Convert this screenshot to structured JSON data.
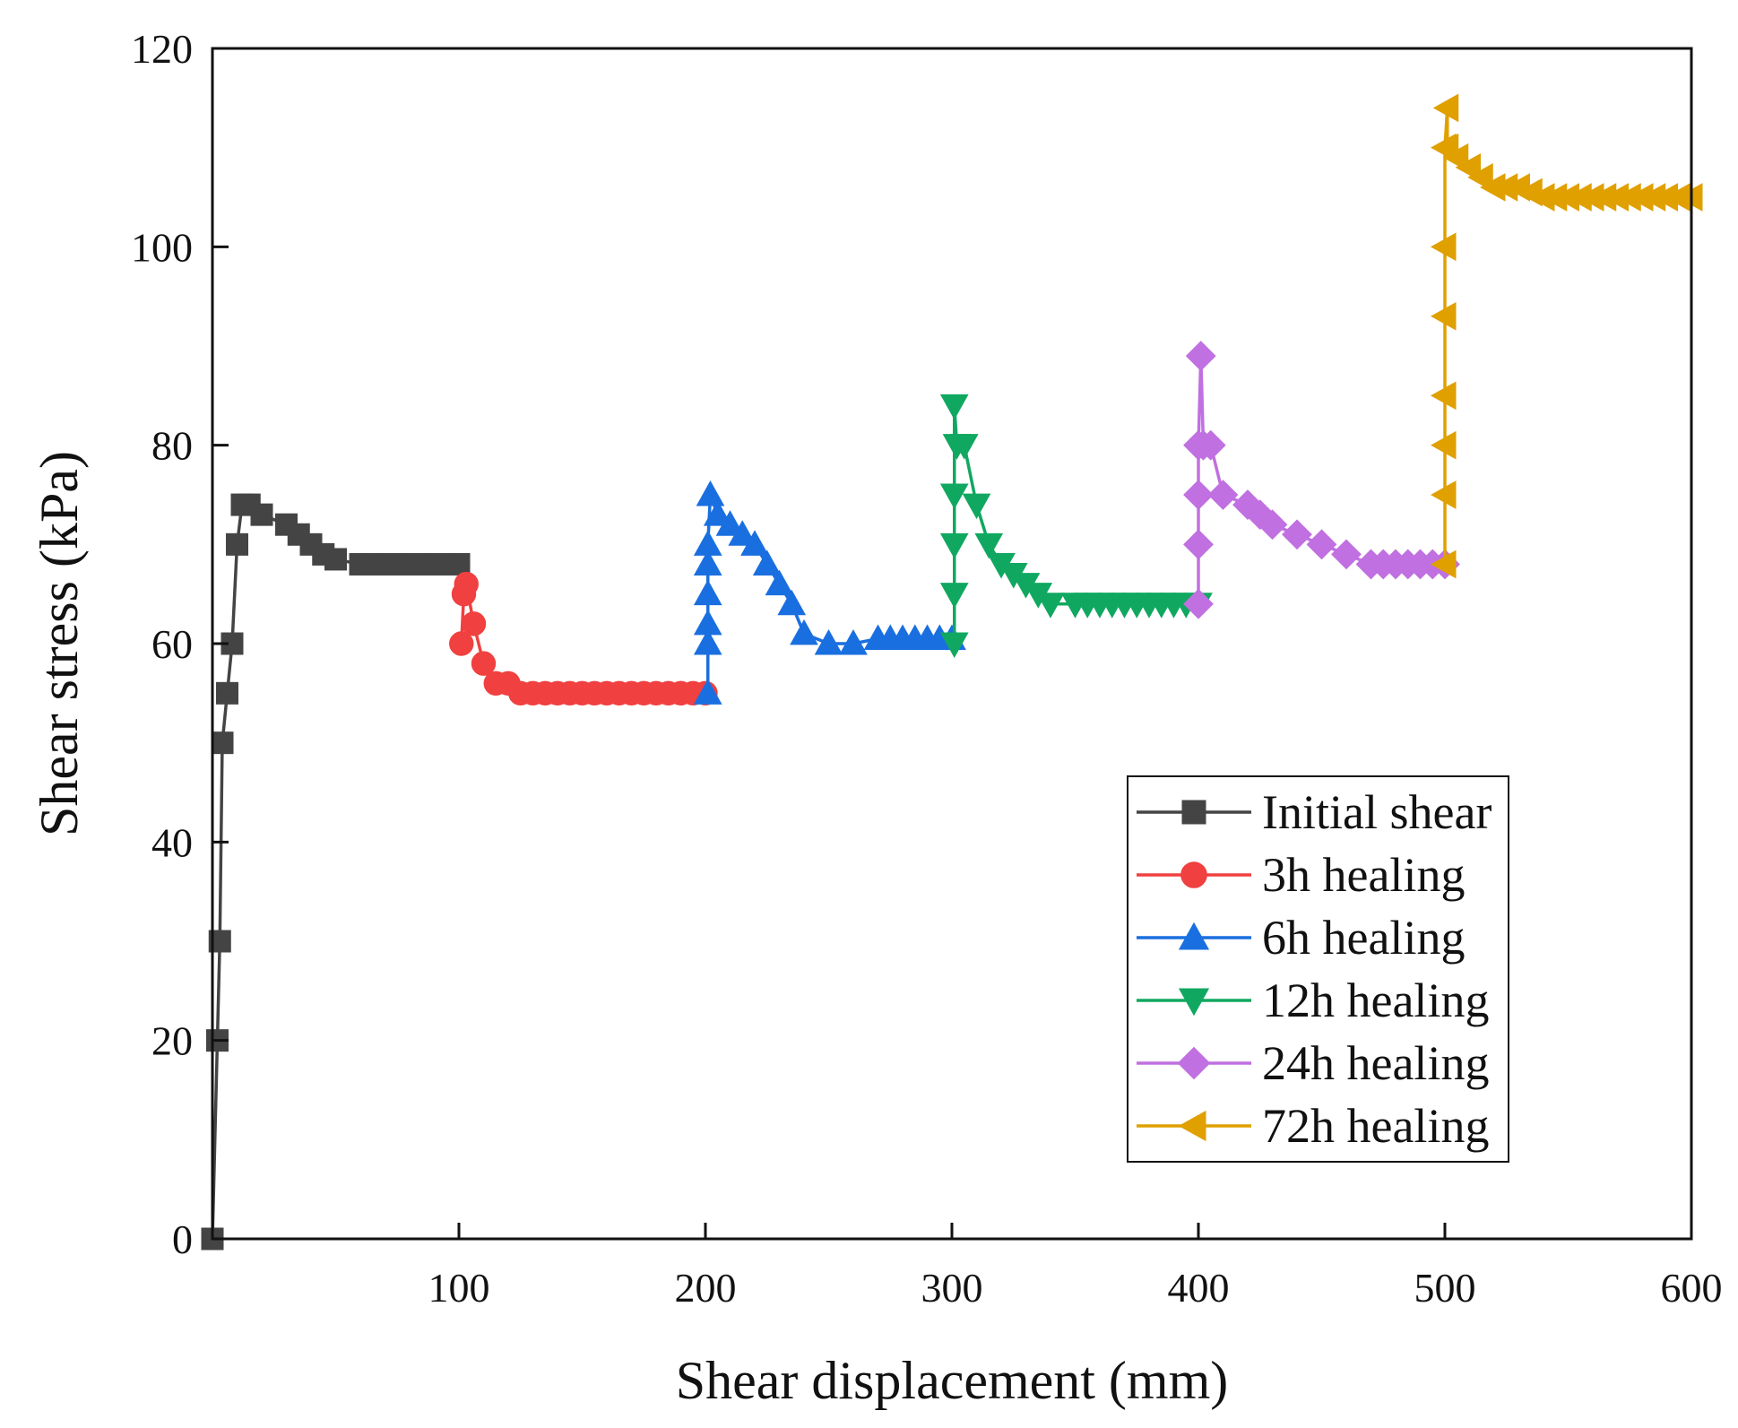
{
  "chart_data": {
    "type": "line",
    "title": "",
    "xlabel": "Shear displacement (mm)",
    "ylabel": "Shear stress (kPa)",
    "xlim": [
      0,
      600
    ],
    "ylim": [
      0,
      120
    ],
    "xticks": [
      100,
      200,
      300,
      400,
      500,
      600
    ],
    "xtick_labels": [
      "100",
      "200",
      "300",
      "400",
      "500",
      "600"
    ],
    "yticks": [
      0,
      20,
      40,
      60,
      80,
      100,
      120
    ],
    "ytick_labels": [
      "0",
      "20",
      "40",
      "60",
      "80",
      "100",
      "120"
    ],
    "grid": false,
    "legend_position": "bottom-right",
    "series": [
      {
        "name": "Initial shear",
        "color": "#444444",
        "marker": "square",
        "x": [
          0,
          2,
          3,
          4,
          6,
          8,
          10,
          12,
          15,
          20,
          30,
          35,
          40,
          45,
          50,
          60,
          65,
          70,
          75,
          80,
          85,
          90,
          95,
          100
        ],
        "y": [
          0,
          20,
          30,
          50,
          55,
          60,
          70,
          74,
          74,
          73,
          72,
          71,
          70,
          69,
          68.5,
          68,
          68,
          68,
          68,
          68,
          68,
          68,
          68,
          68
        ]
      },
      {
        "name": "3h healing",
        "color": "#f04040",
        "marker": "circle",
        "x": [
          101,
          102,
          103,
          106,
          110,
          115,
          120,
          125,
          130,
          135,
          140,
          145,
          150,
          155,
          160,
          165,
          170,
          175,
          180,
          185,
          190,
          195,
          200
        ],
        "y": [
          60,
          65,
          66,
          62,
          58,
          56,
          56,
          55,
          55,
          55,
          55,
          55,
          55,
          55,
          55,
          55,
          55,
          55,
          55,
          55,
          55,
          55,
          55
        ]
      },
      {
        "name": "6h healing",
        "color": "#1a6fe0",
        "marker": "triangle-up",
        "x": [
          201,
          201,
          201,
          201,
          201,
          201,
          202,
          205,
          210,
          215,
          220,
          225,
          230,
          235,
          240,
          250,
          260,
          270,
          275,
          280,
          285,
          290,
          295,
          300
        ],
        "y": [
          55,
          60,
          62,
          65,
          68,
          70,
          75,
          73,
          72,
          71,
          70,
          68,
          66,
          64,
          61,
          60,
          60,
          60.5,
          60.5,
          60.5,
          60.5,
          60.5,
          60.5,
          60.5
        ]
      },
      {
        "name": "12h healing",
        "color": "#10a860",
        "marker": "triangle-down",
        "x": [
          301,
          301,
          301,
          301,
          301,
          302,
          305,
          310,
          315,
          320,
          325,
          330,
          335,
          340,
          350,
          355,
          360,
          365,
          370,
          375,
          380,
          385,
          390,
          395,
          400
        ],
        "y": [
          60,
          65,
          70,
          75,
          84,
          80,
          80,
          74,
          70,
          68,
          67,
          66,
          65,
          64,
          64,
          64,
          64,
          64,
          64,
          64,
          64,
          64,
          64,
          64,
          64
        ]
      },
      {
        "name": "24h healing",
        "color": "#c070e0",
        "marker": "diamond",
        "x": [
          400,
          400,
          400,
          400,
          401,
          402,
          405,
          410,
          420,
          425,
          430,
          440,
          450,
          460,
          470,
          475,
          480,
          485,
          490,
          495,
          500
        ],
        "y": [
          64,
          70,
          75,
          80,
          89,
          80,
          80,
          75,
          74,
          73,
          72,
          71,
          70,
          69,
          68,
          68,
          68,
          68,
          68,
          68,
          68
        ]
      },
      {
        "name": "72h healing",
        "color": "#e0a000",
        "marker": "triangle-left",
        "x": [
          500,
          500,
          500,
          500,
          500,
          500,
          500,
          501,
          501,
          505,
          510,
          515,
          520,
          525,
          530,
          535,
          540,
          545,
          550,
          555,
          560,
          565,
          570,
          575,
          580,
          585,
          590,
          595,
          600
        ],
        "y": [
          68,
          75,
          80,
          85,
          93,
          100,
          110,
          114,
          110,
          109,
          108,
          107,
          106,
          106,
          106,
          105.5,
          105,
          105,
          105,
          105,
          105,
          105,
          105,
          105,
          105,
          105,
          105,
          105,
          105
        ]
      }
    ]
  }
}
